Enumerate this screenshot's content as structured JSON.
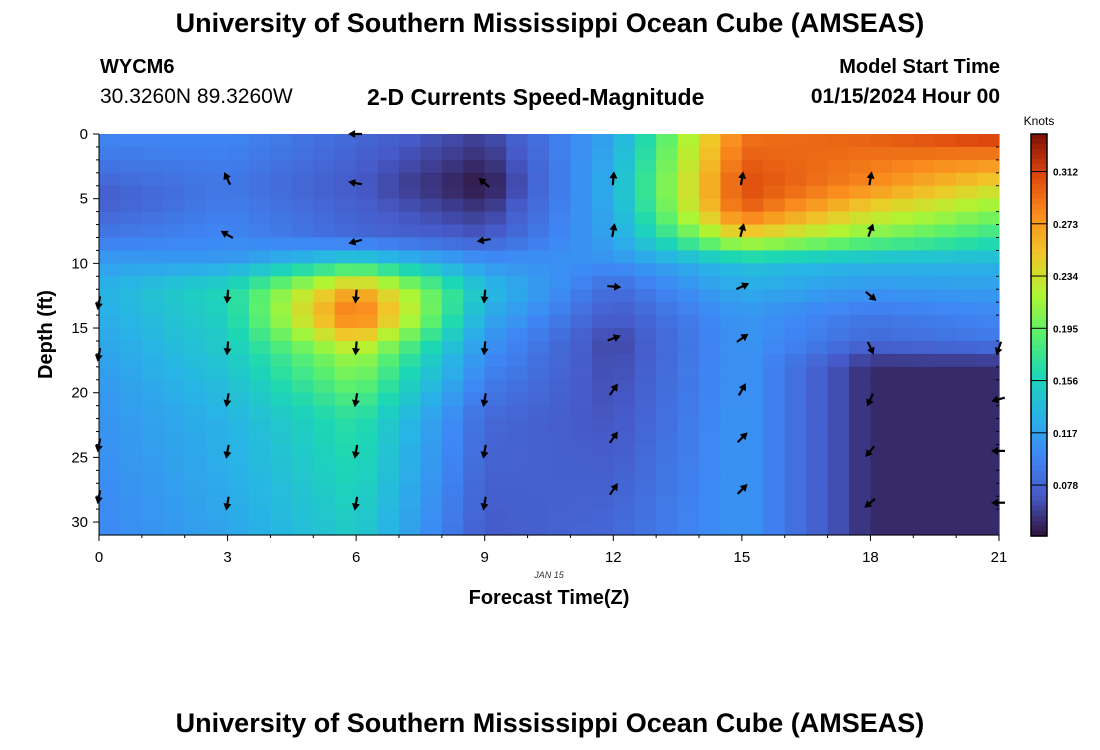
{
  "header": {
    "title": "University of Southern Mississippi Ocean Cube (AMSEAS)",
    "station_id": "WYCM6",
    "station_coords": "30.3260N  89.3260W",
    "plot_title": "2-D Currents Speed-Magnitude",
    "start_label": "Model Start Time",
    "start_value": "01/15/2024 Hour 00"
  },
  "footer": {
    "title": "University of Southern Mississippi Ocean Cube (AMSEAS)"
  },
  "chart_data": {
    "type": "heatmap",
    "title": "2-D Currents Speed-Magnitude",
    "xlabel": "Forecast Time(Z)",
    "ylabel": "Depth (ft)",
    "date_label": "JAN 15",
    "xlim": [
      0,
      21
    ],
    "ylim": [
      0,
      31
    ],
    "x_ticks": [
      0,
      3,
      6,
      9,
      12,
      15,
      18,
      21
    ],
    "y_ticks": [
      0,
      5,
      10,
      15,
      20,
      25,
      30
    ],
    "colorbar": {
      "title": "Knots",
      "min": 0.04,
      "max": 0.34,
      "ticks": [
        "0.312",
        "0.273",
        "0.234",
        "0.195",
        "0.156",
        "0.117",
        "0.078"
      ]
    },
    "columns": [
      {
        "hour": 0,
        "profile": [
          [
            0,
            0.1
          ],
          [
            2,
            0.09
          ],
          [
            5,
            0.07
          ],
          [
            8,
            0.09
          ],
          [
            9.5,
            0.11
          ],
          [
            12,
            0.13
          ],
          [
            20,
            0.11
          ],
          [
            31,
            0.1
          ]
        ]
      },
      {
        "hour": 3,
        "profile": [
          [
            0,
            0.1
          ],
          [
            4,
            0.09
          ],
          [
            8,
            0.1
          ],
          [
            9.5,
            0.11
          ],
          [
            12,
            0.16
          ],
          [
            16,
            0.15
          ],
          [
            22,
            0.13
          ],
          [
            31,
            0.12
          ]
        ]
      },
      {
        "hour": 6,
        "profile": [
          [
            0,
            0.08
          ],
          [
            4,
            0.07
          ],
          [
            8,
            0.08
          ],
          [
            9.5,
            0.14
          ],
          [
            12,
            0.27
          ],
          [
            14,
            0.3
          ],
          [
            17,
            0.22
          ],
          [
            22,
            0.17
          ],
          [
            31,
            0.15
          ]
        ]
      },
      {
        "hour": 9,
        "profile": [
          [
            0,
            0.06
          ],
          [
            4,
            0.04
          ],
          [
            8,
            0.07
          ],
          [
            9.5,
            0.1
          ],
          [
            12,
            0.14
          ],
          [
            16,
            0.11
          ],
          [
            22,
            0.08
          ],
          [
            31,
            0.07
          ]
        ]
      },
      {
        "hour": 12,
        "profile": [
          [
            0,
            0.12
          ],
          [
            4,
            0.13
          ],
          [
            8,
            0.12
          ],
          [
            9.5,
            0.11
          ],
          [
            12,
            0.08
          ],
          [
            16,
            0.06
          ],
          [
            24,
            0.07
          ],
          [
            31,
            0.08
          ]
        ]
      },
      {
        "hour": 15,
        "profile": [
          [
            0,
            0.29
          ],
          [
            4,
            0.31
          ],
          [
            6,
            0.3
          ],
          [
            8,
            0.24
          ],
          [
            10,
            0.14
          ],
          [
            14,
            0.11
          ],
          [
            24,
            0.11
          ],
          [
            31,
            0.11
          ]
        ]
      },
      {
        "hour": 18,
        "profile": [
          [
            0,
            0.3
          ],
          [
            4,
            0.28
          ],
          [
            8,
            0.2
          ],
          [
            10,
            0.13
          ],
          [
            14,
            0.09
          ],
          [
            16,
            0.08
          ],
          [
            18,
            0.05
          ],
          [
            31,
            0.05
          ]
        ]
      },
      {
        "hour": 21,
        "profile": [
          [
            0,
            0.32
          ],
          [
            4,
            0.24
          ],
          [
            8,
            0.17
          ],
          [
            10,
            0.13
          ],
          [
            14,
            0.1
          ],
          [
            16,
            0.09
          ],
          [
            18,
            0.05
          ],
          [
            31,
            0.05
          ]
        ]
      }
    ],
    "vectors": [
      {
        "hour": 0,
        "depth": 13,
        "angle": 100
      },
      {
        "hour": 0,
        "depth": 17,
        "angle": 100
      },
      {
        "hour": 0,
        "depth": 24,
        "angle": 100
      },
      {
        "hour": 0,
        "depth": 28,
        "angle": 100
      },
      {
        "hour": 3,
        "depth": 3.5,
        "angle": -115
      },
      {
        "hour": 3,
        "depth": 7.8,
        "angle": -150
      },
      {
        "hour": 3,
        "depth": 12.5,
        "angle": 95
      },
      {
        "hour": 3,
        "depth": 16.5,
        "angle": 95
      },
      {
        "hour": 3,
        "depth": 20.5,
        "angle": 100
      },
      {
        "hour": 3,
        "depth": 24.5,
        "angle": 100
      },
      {
        "hour": 3,
        "depth": 28.5,
        "angle": 100
      },
      {
        "hour": 6,
        "depth": 0,
        "angle": 180
      },
      {
        "hour": 6,
        "depth": 3.8,
        "angle": 190
      },
      {
        "hour": 6,
        "depth": 8.3,
        "angle": 165
      },
      {
        "hour": 6,
        "depth": 12.5,
        "angle": 95
      },
      {
        "hour": 6,
        "depth": 16.5,
        "angle": 95
      },
      {
        "hour": 6,
        "depth": 20.5,
        "angle": 100
      },
      {
        "hour": 6,
        "depth": 24.5,
        "angle": 100
      },
      {
        "hour": 6,
        "depth": 28.5,
        "angle": 100
      },
      {
        "hour": 9,
        "depth": 3.8,
        "angle": -140
      },
      {
        "hour": 9,
        "depth": 8.2,
        "angle": 170
      },
      {
        "hour": 9,
        "depth": 12.5,
        "angle": 95
      },
      {
        "hour": 9,
        "depth": 16.5,
        "angle": 95
      },
      {
        "hour": 9,
        "depth": 20.5,
        "angle": 100
      },
      {
        "hour": 9,
        "depth": 24.5,
        "angle": 100
      },
      {
        "hour": 9,
        "depth": 28.5,
        "angle": 100
      },
      {
        "hour": 12,
        "depth": 3.5,
        "angle": -85
      },
      {
        "hour": 12,
        "depth": 7.5,
        "angle": -80
      },
      {
        "hour": 12,
        "depth": 11.8,
        "angle": 5
      },
      {
        "hour": 12,
        "depth": 15.8,
        "angle": -20
      },
      {
        "hour": 12,
        "depth": 19.8,
        "angle": -55
      },
      {
        "hour": 12,
        "depth": 23.5,
        "angle": -55
      },
      {
        "hour": 12,
        "depth": 27.5,
        "angle": -55
      },
      {
        "hour": 15,
        "depth": 3.5,
        "angle": -80
      },
      {
        "hour": 15,
        "depth": 7.5,
        "angle": -75
      },
      {
        "hour": 15,
        "depth": 11.8,
        "angle": -25
      },
      {
        "hour": 15,
        "depth": 15.8,
        "angle": -35
      },
      {
        "hour": 15,
        "depth": 19.8,
        "angle": -60
      },
      {
        "hour": 15,
        "depth": 23.5,
        "angle": -45
      },
      {
        "hour": 15,
        "depth": 27.5,
        "angle": -45
      },
      {
        "hour": 18,
        "depth": 3.5,
        "angle": -80
      },
      {
        "hour": 18,
        "depth": 7.5,
        "angle": -70
      },
      {
        "hour": 18,
        "depth": 12.5,
        "angle": 40
      },
      {
        "hour": 18,
        "depth": 16.5,
        "angle": 65
      },
      {
        "hour": 18,
        "depth": 20.5,
        "angle": 115
      },
      {
        "hour": 18,
        "depth": 24.5,
        "angle": 130
      },
      {
        "hour": 18,
        "depth": 28.5,
        "angle": 140
      },
      {
        "hour": 21,
        "depth": 16.5,
        "angle": 110
      },
      {
        "hour": 21,
        "depth": 20.5,
        "angle": 165
      },
      {
        "hour": 21,
        "depth": 24.5,
        "angle": 180
      },
      {
        "hour": 21,
        "depth": 28.5,
        "angle": 180
      }
    ]
  }
}
